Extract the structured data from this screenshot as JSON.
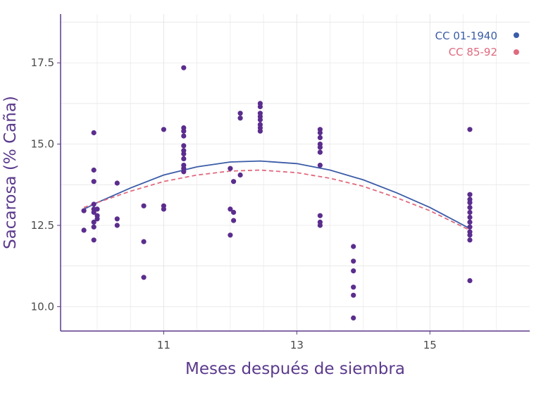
{
  "chart_data": {
    "type": "scatter",
    "xlabel": "Meses después de siembra",
    "ylabel": "Sacarosa (% Caña)",
    "xlim": [
      9.45,
      16.5
    ],
    "ylim": [
      9.25,
      19.0
    ],
    "x_ticks": [
      11,
      13,
      15
    ],
    "y_ticks": [
      10.0,
      12.5,
      15.0,
      17.5
    ],
    "x_tick_labels": [
      "11",
      "13",
      "15"
    ],
    "y_tick_labels": [
      "10.0",
      "12.5",
      "15.0",
      "17.5"
    ],
    "grid": true,
    "legend_position": "top-right",
    "colors": {
      "points": "#5b2d8e",
      "axis": "#5b3a8c",
      "grid": "#e6e6e6",
      "tick_text": "#4a4a4a"
    },
    "points": [
      [
        9.8,
        12.95
      ],
      [
        9.8,
        12.35
      ],
      [
        9.95,
        15.35
      ],
      [
        9.95,
        14.2
      ],
      [
        9.95,
        13.85
      ],
      [
        9.95,
        13.15
      ],
      [
        9.95,
        13.0
      ],
      [
        9.95,
        12.9
      ],
      [
        9.95,
        12.6
      ],
      [
        9.95,
        12.45
      ],
      [
        9.95,
        12.05
      ],
      [
        10.0,
        13.0
      ],
      [
        10.0,
        12.8
      ],
      [
        10.0,
        12.7
      ],
      [
        10.3,
        13.8
      ],
      [
        10.3,
        12.7
      ],
      [
        10.3,
        12.5
      ],
      [
        10.7,
        13.1
      ],
      [
        10.7,
        12.0
      ],
      [
        10.7,
        10.9
      ],
      [
        11.0,
        15.45
      ],
      [
        11.0,
        13.1
      ],
      [
        11.0,
        13.0
      ],
      [
        11.3,
        17.35
      ],
      [
        11.3,
        15.5
      ],
      [
        11.3,
        15.4
      ],
      [
        11.3,
        15.25
      ],
      [
        11.3,
        14.95
      ],
      [
        11.3,
        14.8
      ],
      [
        11.3,
        14.7
      ],
      [
        11.3,
        14.55
      ],
      [
        11.3,
        14.35
      ],
      [
        11.3,
        14.25
      ],
      [
        11.3,
        14.15
      ],
      [
        12.0,
        14.25
      ],
      [
        12.0,
        13.0
      ],
      [
        12.0,
        12.2
      ],
      [
        12.05,
        13.85
      ],
      [
        12.05,
        12.9
      ],
      [
        12.05,
        12.65
      ],
      [
        12.15,
        15.95
      ],
      [
        12.15,
        15.8
      ],
      [
        12.15,
        14.05
      ],
      [
        12.45,
        16.25
      ],
      [
        12.45,
        16.15
      ],
      [
        12.45,
        15.95
      ],
      [
        12.45,
        15.85
      ],
      [
        12.45,
        15.75
      ],
      [
        12.45,
        15.6
      ],
      [
        12.45,
        15.5
      ],
      [
        12.45,
        15.4
      ],
      [
        13.35,
        15.45
      ],
      [
        13.35,
        15.35
      ],
      [
        13.35,
        15.2
      ],
      [
        13.35,
        15.0
      ],
      [
        13.35,
        14.9
      ],
      [
        13.35,
        14.75
      ],
      [
        13.35,
        14.35
      ],
      [
        13.35,
        12.8
      ],
      [
        13.35,
        12.6
      ],
      [
        13.35,
        12.5
      ],
      [
        13.85,
        11.85
      ],
      [
        13.85,
        11.4
      ],
      [
        13.85,
        11.1
      ],
      [
        13.85,
        10.6
      ],
      [
        13.85,
        10.35
      ],
      [
        13.85,
        9.65
      ],
      [
        15.6,
        15.45
      ],
      [
        15.6,
        13.45
      ],
      [
        15.6,
        13.3
      ],
      [
        15.6,
        13.2
      ],
      [
        15.6,
        13.05
      ],
      [
        15.6,
        12.9
      ],
      [
        15.6,
        12.75
      ],
      [
        15.6,
        12.6
      ],
      [
        15.6,
        12.45
      ],
      [
        15.6,
        12.3
      ],
      [
        15.6,
        12.2
      ],
      [
        15.6,
        12.05
      ],
      [
        15.6,
        10.8
      ]
    ],
    "series": [
      {
        "name": "CC 01-1940",
        "color": "#3b5ca8",
        "dash": "solid",
        "x": [
          9.8,
          10.0,
          10.5,
          11.0,
          11.5,
          12.0,
          12.45,
          13.0,
          13.5,
          14.0,
          14.5,
          15.0,
          15.6
        ],
        "y": [
          13.0,
          13.2,
          13.65,
          14.05,
          14.3,
          14.45,
          14.48,
          14.4,
          14.2,
          13.9,
          13.5,
          13.05,
          12.4
        ]
      },
      {
        "name": "CC 85-92",
        "color": "#e06a7f",
        "dash": "dashed",
        "x": [
          9.8,
          10.0,
          10.5,
          11.0,
          11.5,
          12.0,
          12.45,
          13.0,
          13.5,
          14.0,
          14.5,
          15.0,
          15.6
        ],
        "y": [
          13.05,
          13.2,
          13.55,
          13.85,
          14.05,
          14.17,
          14.2,
          14.12,
          13.95,
          13.7,
          13.35,
          12.95,
          12.35
        ]
      }
    ]
  }
}
